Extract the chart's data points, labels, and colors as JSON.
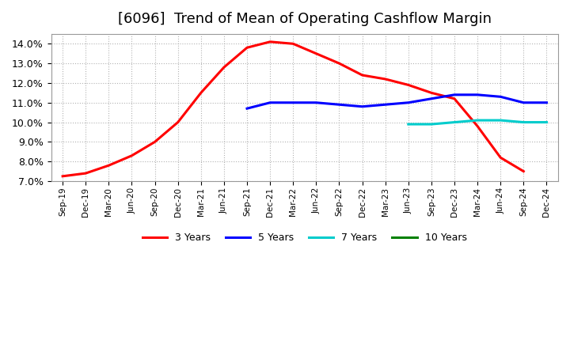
{
  "title": "[6096]  Trend of Mean of Operating Cashflow Margin",
  "title_fontsize": 13,
  "background_color": "#ffffff",
  "grid_color": "#aaaaaa",
  "ylim": [
    0.07,
    0.145
  ],
  "yticks": [
    0.07,
    0.08,
    0.09,
    0.1,
    0.11,
    0.12,
    0.13,
    0.14
  ],
  "series": {
    "3 Years": {
      "color": "#ff0000",
      "linewidth": 2.2,
      "x": [
        "Sep-19",
        "Dec-19",
        "Mar-20",
        "Jun-20",
        "Sep-20",
        "Dec-20",
        "Mar-21",
        "Jun-21",
        "Sep-21",
        "Dec-21",
        "Mar-22",
        "Jun-22",
        "Sep-22",
        "Dec-22",
        "Mar-23",
        "Jun-23",
        "Sep-23",
        "Dec-23",
        "Mar-24",
        "Jun-24",
        "Sep-24"
      ],
      "y": [
        0.0725,
        0.074,
        0.078,
        0.083,
        0.09,
        0.1,
        0.115,
        0.128,
        0.138,
        0.141,
        0.14,
        0.135,
        0.13,
        0.124,
        0.122,
        0.119,
        0.115,
        0.112,
        0.098,
        0.082,
        0.075
      ]
    },
    "5 Years": {
      "color": "#0000ff",
      "linewidth": 2.2,
      "x": [
        "Sep-21",
        "Dec-21",
        "Mar-22",
        "Jun-22",
        "Sep-22",
        "Dec-22",
        "Mar-23",
        "Jun-23",
        "Sep-23",
        "Dec-23",
        "Mar-24",
        "Jun-24",
        "Sep-24",
        "Dec-24"
      ],
      "y": [
        0.107,
        0.11,
        0.11,
        0.11,
        0.109,
        0.108,
        0.109,
        0.11,
        0.112,
        0.114,
        0.114,
        0.113,
        0.11,
        0.11
      ]
    },
    "7 Years": {
      "color": "#00cccc",
      "linewidth": 2.2,
      "x": [
        "Jun-23",
        "Sep-23",
        "Dec-23",
        "Mar-24",
        "Jun-24",
        "Sep-24",
        "Dec-24"
      ],
      "y": [
        0.099,
        0.099,
        0.1,
        0.101,
        0.101,
        0.1,
        0.1
      ]
    },
    "10 Years": {
      "color": "#008000",
      "linewidth": 2.2,
      "x": [],
      "y": []
    }
  },
  "legend_labels": [
    "3 Years",
    "5 Years",
    "7 Years",
    "10 Years"
  ],
  "legend_colors": [
    "#ff0000",
    "#0000ff",
    "#00cccc",
    "#008000"
  ],
  "xtick_labels": [
    "Sep-19",
    "Dec-19",
    "Mar-20",
    "Jun-20",
    "Sep-20",
    "Dec-20",
    "Mar-21",
    "Jun-21",
    "Sep-21",
    "Dec-21",
    "Mar-22",
    "Jun-22",
    "Sep-22",
    "Dec-22",
    "Mar-23",
    "Jun-23",
    "Sep-23",
    "Dec-23",
    "Mar-24",
    "Jun-24",
    "Sep-24",
    "Dec-24"
  ]
}
